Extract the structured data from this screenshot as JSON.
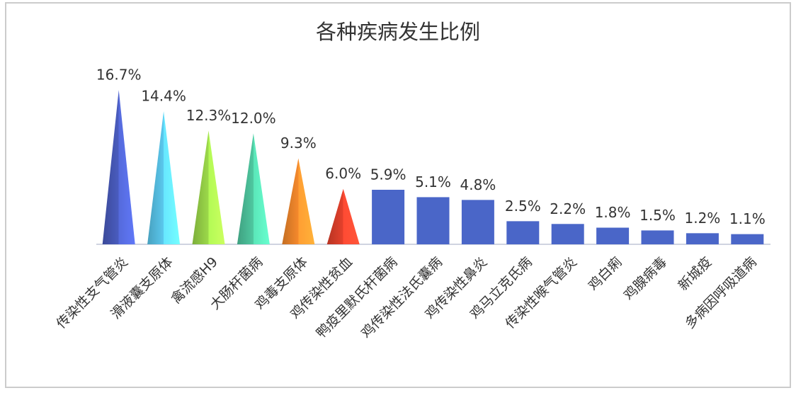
{
  "chart_data": {
    "type": "bar",
    "title": "各种疾病发生比例",
    "categories": [
      "传染性支气管炎",
      "滑液囊支原体",
      "禽流感H9",
      "大肠杆菌病",
      "鸡毒支原体",
      "鸡传染性贫血",
      "鸭疫里默氏杆菌病",
      "鸡传染性法氏囊病",
      "鸡传染性鼻炎",
      "鸡马立克氏病",
      "传染性喉气管炎",
      "鸡白痢",
      "鸡腺病毒",
      "新城疫",
      "多病因呼吸道病"
    ],
    "values": [
      16.7,
      14.4,
      12.3,
      12.0,
      9.3,
      6.0,
      5.9,
      5.1,
      4.8,
      2.5,
      2.2,
      1.8,
      1.5,
      1.2,
      1.1
    ],
    "value_labels": [
      "16.7%",
      "14.4%",
      "12.3%",
      "12.0%",
      "9.3%",
      "6.0%",
      "5.9%",
      "5.1%",
      "4.8%",
      "2.5%",
      "2.2%",
      "1.8%",
      "1.5%",
      "1.2%",
      "1.1%"
    ],
    "colors": [
      "#4a5cbf",
      "#5ac8ee",
      "#9cd94a",
      "#4fc8a0",
      "#f5892c",
      "#e5412c",
      "#4a66c8",
      "#4a66c8",
      "#4a66c8",
      "#4a66c8",
      "#4a66c8",
      "#4a66c8",
      "#4a66c8",
      "#4a66c8",
      "#4a66c8"
    ],
    "shapes": [
      "cone",
      "cone",
      "cone",
      "cone",
      "cone",
      "cone",
      "bar",
      "bar",
      "bar",
      "bar",
      "bar",
      "bar",
      "bar",
      "bar",
      "bar"
    ],
    "ylim": [
      0,
      20
    ]
  }
}
